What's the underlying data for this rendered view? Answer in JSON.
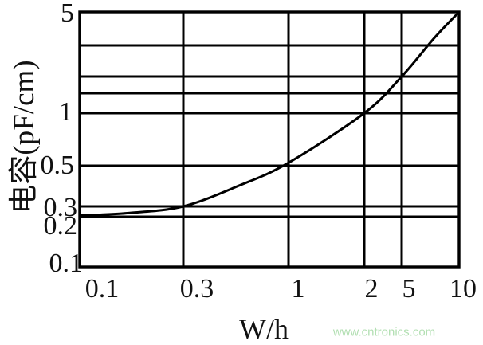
{
  "chart_data": {
    "type": "line",
    "title": "",
    "xlabel": "W/h",
    "ylabel": "电容(pF/cm)",
    "x_scale": "log",
    "y_scale": "log",
    "xlim": [
      0.1,
      10
    ],
    "ylim": [
      0.1,
      5
    ],
    "x_tick_labels": [
      "0.1",
      "0.3",
      "1",
      "2",
      "5",
      "10"
    ],
    "y_tick_labels": [
      "5",
      "1",
      "0.5",
      "0.3",
      "0.2",
      "0.1"
    ],
    "x_gridlines": [
      0.1,
      0.3,
      1,
      2,
      5,
      10
    ],
    "y_gridlines": [
      0.1,
      0.2,
      0.3,
      0.5,
      1,
      1.5,
      2,
      3,
      5
    ],
    "grid": true,
    "line_color": "#000000",
    "series": [
      {
        "name": "capacitance-vs-W/h",
        "points": [
          [
            0.1,
            0.209
          ],
          [
            0.17,
            0.232
          ],
          [
            0.3,
            0.3
          ],
          [
            0.57,
            0.39
          ],
          [
            1,
            0.52
          ],
          [
            2,
            1
          ],
          [
            5,
            2
          ],
          [
            7.4,
            3.35
          ],
          [
            10,
            5
          ]
        ]
      }
    ]
  },
  "watermark": {
    "text": "www.cntronics.com",
    "color": "#b2dfb2"
  }
}
